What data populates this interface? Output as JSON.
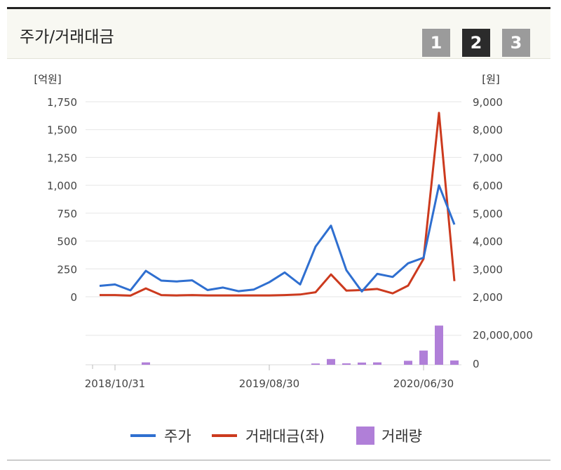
{
  "header": {
    "title": "주가/거래대금",
    "pages": [
      "1",
      "2",
      "3"
    ],
    "active_page": "2"
  },
  "chart_data": {
    "type": "line",
    "left_unit": "[억원]",
    "right_unit": "[원]",
    "left_ticks": [
      "1,750",
      "1,500",
      "1,250",
      "1,000",
      "750",
      "500",
      "250",
      "0"
    ],
    "right_ticks": [
      "9,000",
      "8,000",
      "7,000",
      "6,000",
      "5,000",
      "4,000",
      "3,000",
      "2,000"
    ],
    "left_ylim": [
      0,
      1750
    ],
    "right_ylim": [
      2000,
      9000
    ],
    "volume_ticks": [
      "20,000,000",
      "0"
    ],
    "volume_ylim": [
      0,
      25000000
    ],
    "x_ticks": [
      {
        "label": "2018/10/31",
        "index": 1
      },
      {
        "label": "2019/08/30",
        "index": 11
      },
      {
        "label": "2020/06/30",
        "index": 21
      }
    ],
    "series": [
      {
        "name": "주가",
        "axis": "right",
        "color": "#2f6fd0",
        "values": [
          2390,
          2440,
          2230,
          2930,
          2580,
          2550,
          2590,
          2240,
          2330,
          2200,
          2260,
          2520,
          2870,
          2440,
          3800,
          4550,
          2950,
          2190,
          2820,
          2710,
          3200,
          3400,
          6000,
          4590
        ]
      },
      {
        "name": "거래대금(좌)",
        "axis": "left",
        "color": "#cc3a1e",
        "values": [
          15,
          15,
          10,
          75,
          15,
          12,
          15,
          12,
          12,
          12,
          12,
          12,
          15,
          20,
          40,
          200,
          55,
          60,
          70,
          30,
          100,
          340,
          1650,
          140
        ]
      },
      {
        "name": "거래량",
        "axis": "volume",
        "type": "bar",
        "color": "#b07fd8",
        "values": [
          0,
          0,
          0,
          1500000,
          0,
          0,
          0,
          0,
          0,
          0,
          0,
          0,
          0,
          0,
          800000,
          3600000,
          900000,
          1400000,
          1500000,
          0,
          2500000,
          8900000,
          24500000,
          2700000
        ]
      }
    ],
    "legend_position": "bottom",
    "grid": true
  }
}
